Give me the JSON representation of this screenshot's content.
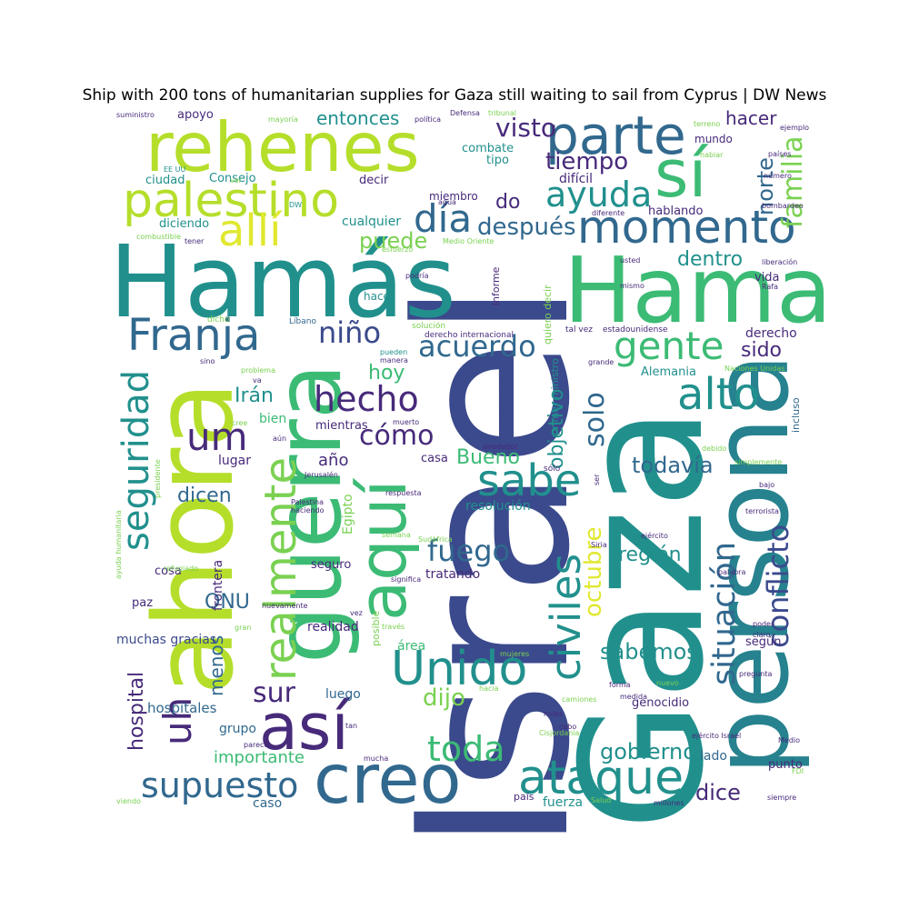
{
  "title": "Ship with 200 tons of humanitarian supplies for Gaza still waiting to sail from Cyprus | DW News",
  "words": [
    {
      "text": "Israel"
    },
    {
      "text": "Gaza"
    },
    {
      "text": "Hamás"
    },
    {
      "text": "ahora"
    },
    {
      "text": "Hama"
    },
    {
      "text": "persona"
    },
    {
      "text": "guerra"
    },
    {
      "text": "rehenes"
    },
    {
      "text": "creo"
    },
    {
      "text": "así"
    },
    {
      "text": "sí"
    },
    {
      "text": "aquí"
    },
    {
      "text": "parte"
    },
    {
      "text": "palestino"
    },
    {
      "text": "momento"
    },
    {
      "text": "allí"
    },
    {
      "text": "Franja"
    },
    {
      "text": "seguridad"
    },
    {
      "text": "realmente"
    },
    {
      "text": "uh"
    },
    {
      "text": "Unido"
    },
    {
      "text": "ataque"
    },
    {
      "text": "sabe"
    },
    {
      "text": "alto"
    },
    {
      "text": "gente"
    },
    {
      "text": "civiles"
    },
    {
      "text": "situación"
    },
    {
      "text": "conflicto"
    },
    {
      "text": "supuesto"
    },
    {
      "text": "toda"
    },
    {
      "text": "hecho"
    },
    {
      "text": "um"
    },
    {
      "text": "día"
    },
    {
      "text": "ayuda"
    },
    {
      "text": "familia"
    },
    {
      "text": "acuerdo"
    },
    {
      "text": "fuego"
    },
    {
      "text": "niño"
    },
    {
      "text": "cómo"
    },
    {
      "text": "después"
    },
    {
      "text": "tiempo"
    },
    {
      "text": "visto"
    },
    {
      "text": "octubre"
    },
    {
      "text": "solo"
    },
    {
      "text": "norte"
    },
    {
      "text": "objetivo"
    },
    {
      "text": "sur"
    },
    {
      "text": "dijo"
    },
    {
      "text": "gobierno"
    },
    {
      "text": "sabemos"
    },
    {
      "text": "todavía"
    },
    {
      "text": "dice"
    },
    {
      "text": "puede"
    },
    {
      "text": "Irán"
    },
    {
      "text": "hoy"
    },
    {
      "text": "Bueno"
    },
    {
      "text": "dicen"
    },
    {
      "text": "hospital"
    },
    {
      "text": "menos"
    },
    {
      "text": "ONU"
    },
    {
      "text": "región"
    },
    {
      "text": "dentro"
    },
    {
      "text": "sido"
    },
    {
      "text": "do"
    },
    {
      "text": "entonces"
    },
    {
      "text": "hacer"
    },
    {
      "text": "importante"
    },
    {
      "text": "año"
    },
    {
      "text": "hospitales"
    },
    {
      "text": "muchas gracias"
    },
    {
      "text": "caso"
    },
    {
      "text": "fuerza"
    },
    {
      "text": "mundo"
    },
    {
      "text": "vida"
    },
    {
      "text": "derecho"
    },
    {
      "text": "según"
    },
    {
      "text": "luego"
    },
    {
      "text": "realidad"
    },
    {
      "text": "grupo"
    },
    {
      "text": "lado"
    },
    {
      "text": "punto"
    },
    {
      "text": "genocidio"
    },
    {
      "text": "Alemania"
    },
    {
      "text": "hablando"
    },
    {
      "text": "difícil"
    },
    {
      "text": "lugar"
    },
    {
      "text": "mientras"
    },
    {
      "text": "área"
    },
    {
      "text": "tratando"
    },
    {
      "text": "resolución"
    },
    {
      "text": "Egipto"
    },
    {
      "text": "frontera"
    },
    {
      "text": "cosa"
    },
    {
      "text": "paz"
    },
    {
      "text": "bien"
    },
    {
      "text": "seguro"
    },
    {
      "text": "casa"
    },
    {
      "text": "decir"
    },
    {
      "text": "cualquier"
    },
    {
      "text": "combate"
    },
    {
      "text": "tipo"
    },
    {
      "text": "apoyo"
    },
    {
      "text": "Consejo"
    },
    {
      "text": "ciudad"
    },
    {
      "text": "diciendo"
    },
    {
      "text": "miembro"
    },
    {
      "text": "hace"
    },
    {
      "text": "informe"
    },
    {
      "text": "quiero decir"
    },
    {
      "text": "primer ministro"
    },
    {
      "text": "incluso"
    },
    {
      "text": "posible"
    },
    {
      "text": "país"
    },
    {
      "text": "derecho internacional"
    },
    {
      "text": "Líbano"
    },
    {
      "text": "dicho"
    },
    {
      "text": "EE UU"
    },
    {
      "text": "ver"
    },
    {
      "text": "DW"
    },
    {
      "text": "combustible"
    },
    {
      "text": "tener"
    },
    {
      "text": "esfuerzo"
    },
    {
      "text": "Medio Oriente"
    },
    {
      "text": "podría"
    },
    {
      "text": "usted"
    },
    {
      "text": "mismo"
    },
    {
      "text": "liberación"
    },
    {
      "text": "Rafa"
    },
    {
      "text": "solución"
    },
    {
      "text": "tal vez"
    },
    {
      "text": "estadounidense"
    },
    {
      "text": "pueden"
    },
    {
      "text": "manera"
    },
    {
      "text": "grande"
    },
    {
      "text": "Naciones Unidas"
    },
    {
      "text": "sino"
    },
    {
      "text": "problema"
    },
    {
      "text": "va"
    },
    {
      "text": "cree"
    },
    {
      "text": "muerto"
    },
    {
      "text": "aún"
    },
    {
      "text": "alrededor"
    },
    {
      "text": "debido"
    },
    {
      "text": "simplemente"
    },
    {
      "text": "Jerusalén"
    },
    {
      "text": "ser"
    },
    {
      "text": "sólo"
    },
    {
      "text": "bajo"
    },
    {
      "text": "Palestina"
    },
    {
      "text": "respuesta"
    },
    {
      "text": "haciendo"
    },
    {
      "text": "terrorista"
    },
    {
      "text": "semana"
    },
    {
      "text": "Sudáfrica"
    },
    {
      "text": "ejército"
    },
    {
      "text": "Siria"
    },
    {
      "text": "refugiado"
    },
    {
      "text": "significa"
    },
    {
      "text": "palabra"
    },
    {
      "text": "ayuda humanitaria"
    },
    {
      "text": "presidente"
    },
    {
      "text": "nuevamente"
    },
    {
      "text": "vez"
    },
    {
      "text": "gran"
    },
    {
      "text": "través"
    },
    {
      "text": "poder"
    },
    {
      "text": "claro"
    },
    {
      "text": "mujeres"
    },
    {
      "text": "hacia"
    },
    {
      "text": "forma"
    },
    {
      "text": "nuevo"
    },
    {
      "text": "pregunta"
    },
    {
      "text": "camiones"
    },
    {
      "text": "medida"
    },
    {
      "text": "miles"
    },
    {
      "text": "cabo"
    },
    {
      "text": "Cisjordania"
    },
    {
      "text": "parece"
    },
    {
      "text": "tan"
    },
    {
      "text": "ejército Israel"
    },
    {
      "text": "Medio"
    },
    {
      "text": "mucha"
    },
    {
      "text": "FDI"
    },
    {
      "text": "viendo"
    },
    {
      "text": "Salud"
    },
    {
      "text": "millones"
    },
    {
      "text": "siempre"
    },
    {
      "text": "suministro"
    },
    {
      "text": "mayoría"
    },
    {
      "text": "política"
    },
    {
      "text": "Defensa"
    },
    {
      "text": "tribunal"
    },
    {
      "text": "terreno"
    },
    {
      "text": "ejemplo"
    },
    {
      "text": "habiar"
    },
    {
      "text": "países"
    },
    {
      "text": "número"
    },
    {
      "text": "diferente"
    },
    {
      "text": "agua"
    },
    {
      "text": "bombardeo"
    }
  ],
  "colors": {
    "navy": "#3b4a8c",
    "teal": "#21908d",
    "green": "#3cbb75",
    "lime": "#b5de2b",
    "yellow": "#e0e830",
    "purple": "#472a7a",
    "blue": "#31688e",
    "darkteal": "#26828e",
    "lightgreen": "#7ad151"
  }
}
